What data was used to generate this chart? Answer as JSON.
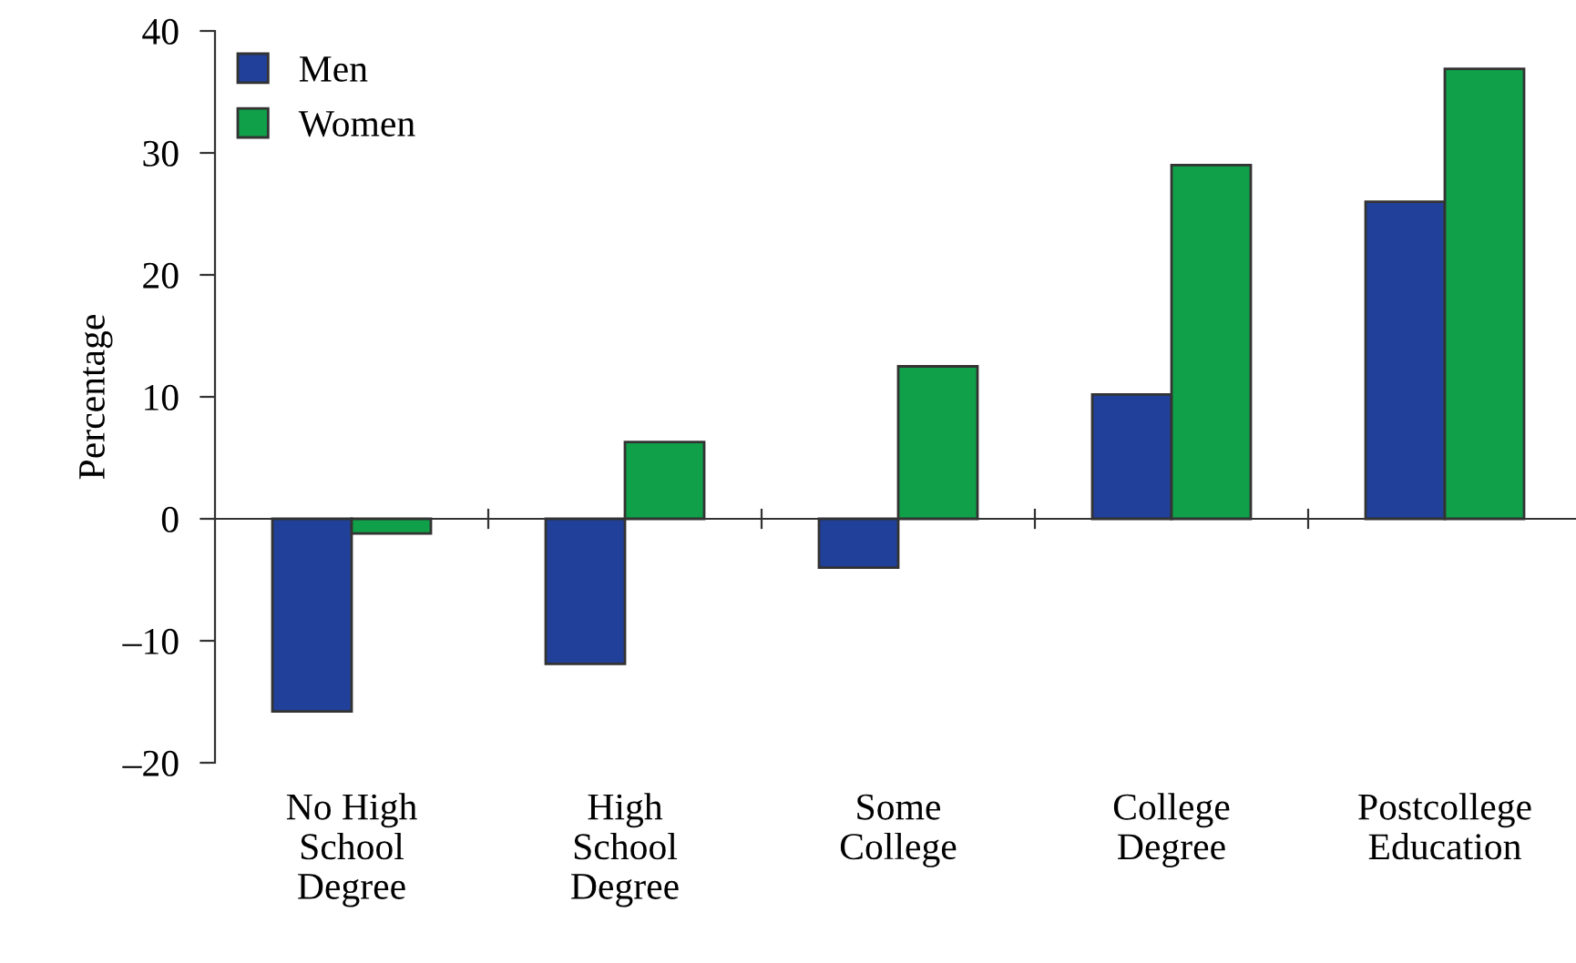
{
  "chart_data": {
    "type": "bar",
    "ylabel": "Percentage",
    "categories": [
      "No High\nSchool\nDegree",
      "High\nSchool\nDegree",
      "Some\nCollege",
      "College\nDegree",
      "Postcollege\nEducation"
    ],
    "series": [
      {
        "name": "Men",
        "color": "#21409a",
        "values": [
          -15.8,
          -11.9,
          -4.0,
          10.2,
          26.0
        ]
      },
      {
        "name": "Women",
        "color": "#0fa049",
        "values": [
          -1.2,
          6.3,
          12.5,
          29.0,
          36.9
        ]
      }
    ],
    "ylim": [
      -20,
      40
    ],
    "yticks": [
      {
        "value": -20,
        "label": "–20"
      },
      {
        "value": -10,
        "label": "–10"
      },
      0,
      10,
      20,
      30,
      40
    ],
    "legend": "top left"
  }
}
